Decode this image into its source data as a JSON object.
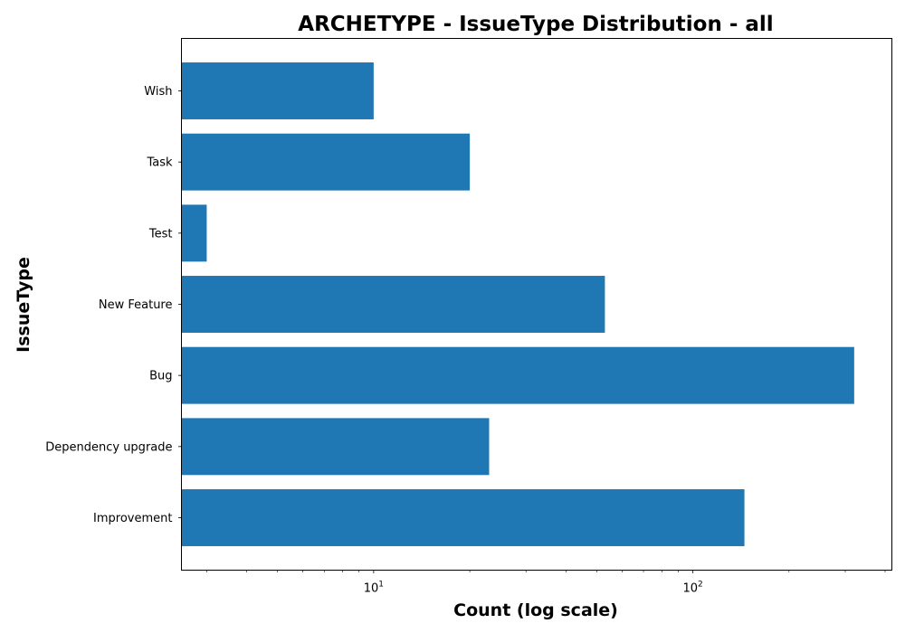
{
  "chart_data": {
    "type": "bar",
    "orientation": "horizontal",
    "title": "ARCHETYPE - IssueType Distribution - all",
    "xlabel": "Count (log scale)",
    "ylabel": "IssueType",
    "x_scale": "log",
    "xlim": [
      2.5,
      420
    ],
    "x_major_ticks": [
      {
        "value": 10,
        "label_base": "10",
        "label_exp": "1"
      },
      {
        "value": 100,
        "label_base": "10",
        "label_exp": "2"
      }
    ],
    "categories": [
      "Wish",
      "Task",
      "Test",
      "New Feature",
      "Bug",
      "Dependency upgrade",
      "Improvement"
    ],
    "values": [
      10,
      20,
      3,
      53,
      320,
      23,
      145
    ],
    "bar_color": "#1f77b4",
    "grid": false,
    "legend": "none"
  }
}
